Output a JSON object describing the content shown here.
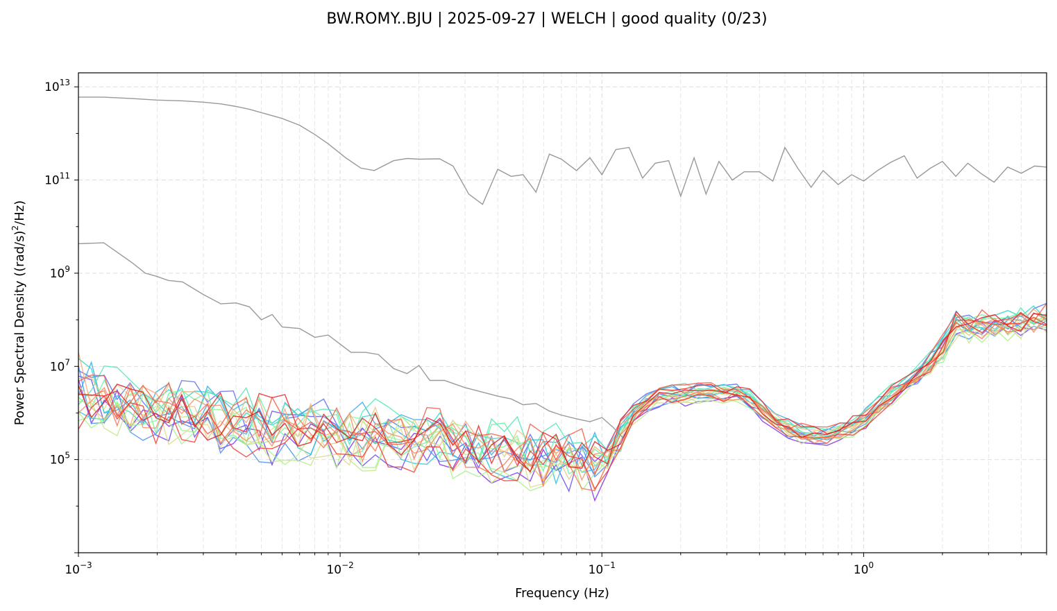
{
  "chart_data": {
    "type": "line",
    "title": "BW.ROMY..BJU | 2025-09-27 | WELCH | good quality (0/23)",
    "xlabel": "Frequency (Hz)",
    "ylabel_main": "Power Spectral Density ((rad/s)",
    "ylabel_sup": "2",
    "ylabel_tail": "/Hz)",
    "x_scale": "log",
    "y_scale": "log",
    "xlim": [
      0.001,
      5.0
    ],
    "ylim": [
      1000.0,
      20000000000000.0
    ],
    "grid": true,
    "x_ticks": [
      {
        "value": 0.001,
        "base": "10",
        "exp": "−3"
      },
      {
        "value": 0.01,
        "base": "10",
        "exp": "−2"
      },
      {
        "value": 0.1,
        "base": "10",
        "exp": "−1"
      },
      {
        "value": 1,
        "base": "10",
        "exp": "0"
      }
    ],
    "y_ticks": [
      {
        "value": 100000.0,
        "base": "10",
        "exp": "5"
      },
      {
        "value": 10000000.0,
        "base": "10",
        "exp": "7"
      },
      {
        "value": 1000000000.0,
        "base": "10",
        "exp": "9"
      },
      {
        "value": 100000000000.0,
        "base": "10",
        "exp": "11"
      },
      {
        "value": 10000000000000.0,
        "base": "10",
        "exp": "13"
      }
    ],
    "gray_series": [
      {
        "color": "#999999",
        "points": [
          [
            0.001,
            6000000000000.0
          ],
          [
            0.00125,
            6000000000000.0
          ],
          [
            0.0016,
            5600000000000.0
          ],
          [
            0.002,
            5200000000000.0
          ],
          [
            0.0025,
            5000000000000.0
          ],
          [
            0.003,
            4700000000000.0
          ],
          [
            0.0035,
            4300000000000.0
          ],
          [
            0.004,
            3800000000000.0
          ],
          [
            0.0045,
            3300000000000.0
          ],
          [
            0.005,
            2800000000000.0
          ],
          [
            0.006,
            2100000000000.0
          ],
          [
            0.007,
            1500000000000.0
          ],
          [
            0.008,
            950000000000.0
          ],
          [
            0.009,
            600000000000.0
          ],
          [
            0.0105,
            300000000000.0
          ],
          [
            0.012,
            180000000000.0
          ],
          [
            0.0135,
            160000000000.0
          ],
          [
            0.016,
            260000000000.0
          ],
          [
            0.018,
            290000000000.0
          ],
          [
            0.02,
            280000000000.0
          ],
          [
            0.024,
            285000000000.0
          ],
          [
            0.027,
            200000000000.0
          ],
          [
            0.031,
            50000000000.0
          ],
          [
            0.035,
            30000000000.0
          ],
          [
            0.04,
            170000000000.0
          ],
          [
            0.045,
            120000000000.0
          ],
          [
            0.05,
            130000000000.0
          ],
          [
            0.056,
            55000000000.0
          ],
          [
            0.063,
            360000000000.0
          ],
          [
            0.07,
            280000000000.0
          ],
          [
            0.08,
            160000000000.0
          ],
          [
            0.09,
            300000000000.0
          ],
          [
            0.1,
            130000000000.0
          ],
          [
            0.113,
            450000000000.0
          ],
          [
            0.127,
            500000000000.0
          ],
          [
            0.143,
            110000000000.0
          ],
          [
            0.16,
            230000000000.0
          ],
          [
            0.18,
            260000000000.0
          ],
          [
            0.2,
            45000000000.0
          ],
          [
            0.225,
            300000000000.0
          ],
          [
            0.25,
            50000000000.0
          ],
          [
            0.28,
            250000000000.0
          ],
          [
            0.315,
            100000000000.0
          ],
          [
            0.35,
            150000000000.0
          ],
          [
            0.4,
            150000000000.0
          ],
          [
            0.45,
            95000000000.0
          ],
          [
            0.5,
            500000000000.0
          ],
          [
            0.56,
            180000000000.0
          ],
          [
            0.63,
            70000000000.0
          ],
          [
            0.7,
            160000000000.0
          ],
          [
            0.8,
            80000000000.0
          ],
          [
            0.9,
            130000000000.0
          ],
          [
            1.0,
            95000000000.0
          ],
          [
            1.13,
            160000000000.0
          ],
          [
            1.27,
            240000000000.0
          ],
          [
            1.43,
            330000000000.0
          ],
          [
            1.6,
            110000000000.0
          ],
          [
            1.8,
            180000000000.0
          ],
          [
            2.0,
            250000000000.0
          ],
          [
            2.25,
            120000000000.0
          ],
          [
            2.5,
            230000000000.0
          ],
          [
            2.8,
            140000000000.0
          ],
          [
            3.15,
            90000000000.0
          ],
          [
            3.55,
            190000000000.0
          ],
          [
            4.0,
            140000000000.0
          ],
          [
            4.5,
            200000000000.0
          ],
          [
            5.0,
            190000000000.0
          ]
        ]
      },
      {
        "color": "#999999",
        "points": [
          [
            0.001,
            4300000000.0
          ],
          [
            0.00125,
            4500000000.0
          ],
          [
            0.0016,
            1700000000.0
          ],
          [
            0.0018,
            1000000000.0
          ],
          [
            0.002,
            850000000.0
          ],
          [
            0.0022,
            700000000.0
          ],
          [
            0.0025,
            650000000.0
          ],
          [
            0.003,
            350000000.0
          ],
          [
            0.0035,
            220000000.0
          ],
          [
            0.004,
            230000000.0
          ],
          [
            0.0045,
            190000000.0
          ],
          [
            0.005,
            100000000.0
          ],
          [
            0.0055,
            130000000.0
          ],
          [
            0.006,
            70000000.0
          ],
          [
            0.007,
            65000000.0
          ],
          [
            0.008,
            42000000.0
          ],
          [
            0.009,
            47000000.0
          ],
          [
            0.01,
            30000000.0
          ],
          [
            0.011,
            20000000.0
          ],
          [
            0.0125,
            20000000.0
          ],
          [
            0.014,
            18000000.0
          ],
          [
            0.016,
            9000000.0
          ],
          [
            0.018,
            7000000.0
          ],
          [
            0.02,
            10500000.0
          ],
          [
            0.022,
            5000000.0
          ],
          [
            0.025,
            5000000.0
          ],
          [
            0.03,
            3500000.0
          ],
          [
            0.035,
            2800000.0
          ],
          [
            0.04,
            2300000.0
          ],
          [
            0.045,
            2000000.0
          ],
          [
            0.05,
            1500000.0
          ],
          [
            0.056,
            1600000.0
          ],
          [
            0.063,
            1100000.0
          ],
          [
            0.07,
            900000.0
          ],
          [
            0.08,
            750000.0
          ],
          [
            0.09,
            650000.0
          ],
          [
            0.1,
            800000.0
          ],
          [
            0.11,
            500000.0
          ],
          [
            0.12,
            300000.0
          ]
        ]
      }
    ],
    "random_series": {
      "count": 21,
      "x_start": 0.001,
      "x_end": 5.0,
      "points_per_series": 76,
      "seed": 7
    },
    "profile": [
      [
        0.001,
        3000000.0
      ],
      [
        0.002,
        1000000.0
      ],
      [
        0.005,
        500000.0
      ],
      [
        0.01,
        350000.0
      ],
      [
        0.02,
        250000.0
      ],
      [
        0.05,
        120000.0
      ],
      [
        0.095,
        80000.0
      ],
      [
        0.105,
        100000.0
      ],
      [
        0.13,
        900000.0
      ],
      [
        0.16,
        2200000.0
      ],
      [
        0.25,
        2800000.0
      ],
      [
        0.35,
        2500000.0
      ],
      [
        0.4,
        1300000.0
      ],
      [
        0.45,
        700000.0
      ],
      [
        0.55,
        370000.0
      ],
      [
        0.7,
        300000.0
      ],
      [
        0.8,
        350000.0
      ],
      [
        1.0,
        700000.0
      ],
      [
        1.3,
        2500000.0
      ],
      [
        1.6,
        6000000.0
      ],
      [
        2.0,
        20000000.0
      ],
      [
        2.2,
        70000000.0
      ],
      [
        2.5,
        70000000.0
      ],
      [
        3.5,
        80000000.0
      ],
      [
        5.0,
        100000000.0
      ]
    ]
  },
  "colors": {
    "palette": [
      "#7f30f0",
      "#6a4df5",
      "#5a6ff2",
      "#4b8ff0",
      "#3aa7e8",
      "#2bc2dc",
      "#33d6c8",
      "#4ee8b4",
      "#6cf2a0",
      "#8ef593",
      "#a8f28a",
      "#c2e888",
      "#dcd98d",
      "#e9c586",
      "#f3ab74",
      "#f58f62",
      "#f67453",
      "#f45a45",
      "#ef4036",
      "#e52a29",
      "#d92020"
    ],
    "gray": "#999999"
  }
}
